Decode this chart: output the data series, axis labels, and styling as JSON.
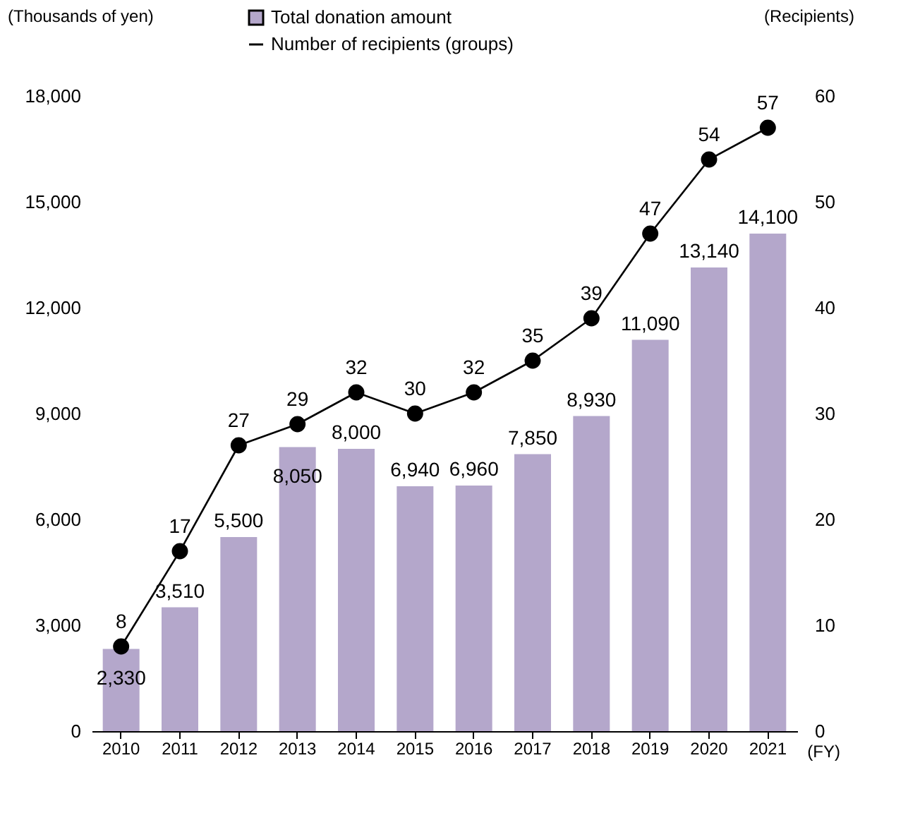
{
  "chart_data": {
    "type": "bar",
    "categories": [
      "2010",
      "2011",
      "2012",
      "2013",
      "2014",
      "2015",
      "2016",
      "2017",
      "2018",
      "2019",
      "2020",
      "2021"
    ],
    "series": [
      {
        "name": "Total donation amount",
        "color": "#b4a7cb",
        "values": [
          2330,
          3510,
          5500,
          8050,
          8000,
          6940,
          6960,
          7850,
          8930,
          11090,
          13140,
          14100
        ],
        "value_labels": [
          "2,330",
          "3,510",
          "5,500",
          "8,050",
          "8,000",
          "6,940",
          "6,960",
          "7,850",
          "8,930",
          "11,090",
          "13,140",
          "14,100"
        ]
      },
      {
        "name": "Number of recipients (groups)",
        "type": "line",
        "axis": "y2",
        "color": "#000000",
        "values": [
          8,
          17,
          27,
          29,
          32,
          30,
          32,
          35,
          39,
          47,
          54,
          57
        ]
      }
    ],
    "ylabel": "(Thousands of yen)",
    "y2label": "(Recipients)",
    "xlabel": "(FY)",
    "ylim": [
      0,
      18000
    ],
    "yticks": [
      {
        "value": 0,
        "label": "0"
      },
      {
        "value": 3000,
        "label": "3,000"
      },
      {
        "value": 6000,
        "label": "6,000"
      },
      {
        "value": 9000,
        "label": "9,000"
      },
      {
        "value": 12000,
        "label": "12,000"
      },
      {
        "value": 15000,
        "label": "15,000"
      },
      {
        "value": 18000,
        "label": "18,000"
      }
    ],
    "y2lim": [
      0,
      60
    ],
    "y2ticks": [
      0,
      10,
      20,
      30,
      40,
      50,
      60
    ],
    "data_labels": true,
    "marker": "circle",
    "legend": "top",
    "grid": false
  }
}
